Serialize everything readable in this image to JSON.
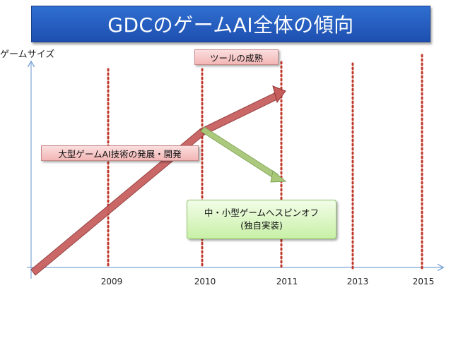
{
  "slide": {
    "title": "GDCのゲームAI全体の傾向",
    "y_axis_label": "ゲームサイズ",
    "labels": {
      "tool_maturity": "ツールの成熟",
      "large_game_ai": "大型ゲームAI技術の発展・開発",
      "spinoff_line1": "中・小型ゲームへスピンオフ",
      "spinoff_line2": "(独自実装)"
    },
    "years": [
      "2009",
      "2010",
      "2011",
      "2013",
      "2015"
    ],
    "colors": {
      "title_bg": "#2a62c4",
      "red_arrow": "#b64a4a",
      "green_arrow": "#9fbe6a",
      "dotted_line": "#c0392b",
      "axis": "#7ea6d6"
    }
  }
}
